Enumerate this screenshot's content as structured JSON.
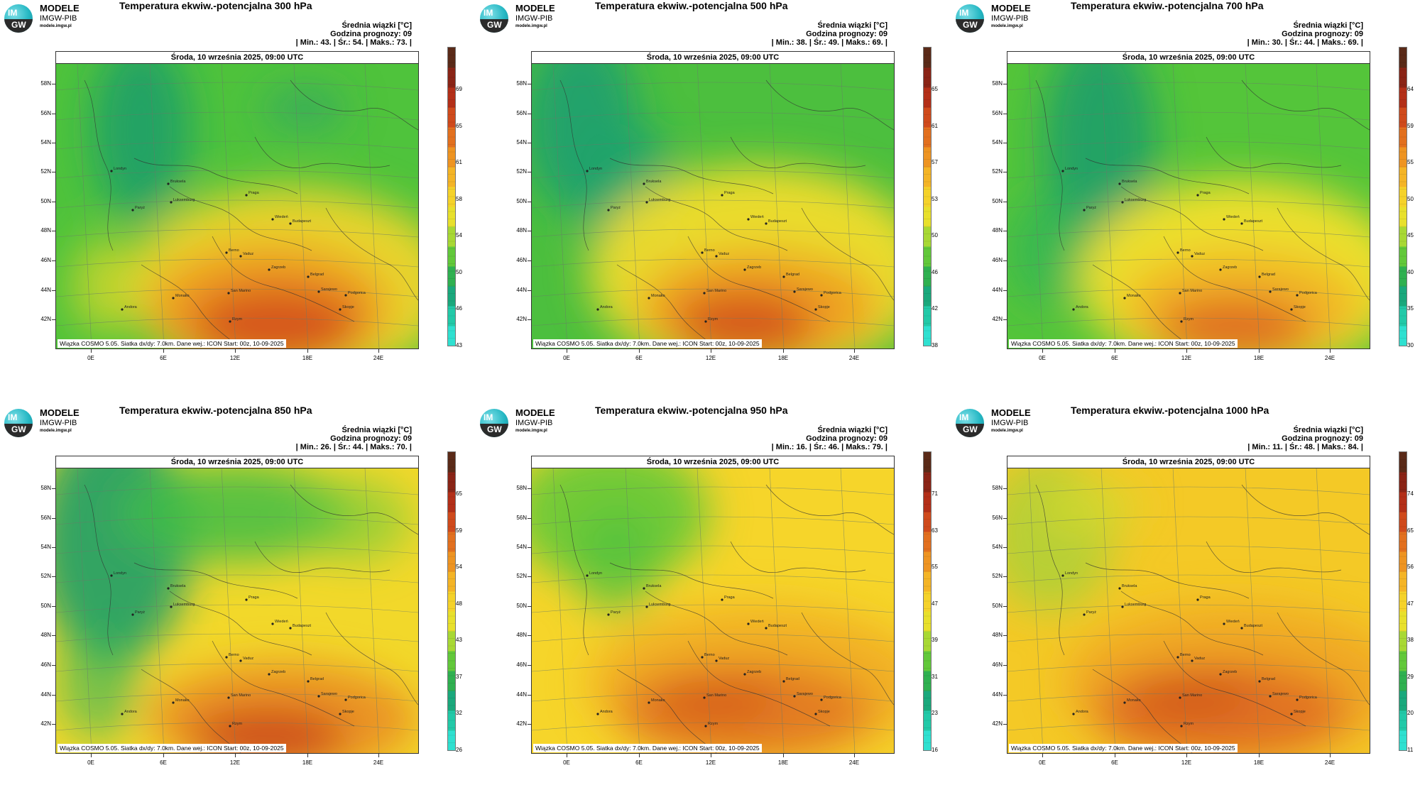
{
  "brand": {
    "line1": "MODELE",
    "line2": "IMGW-PIB",
    "url": "modele.imgw.pl",
    "logo_top": "IM",
    "logo_bottom": "GW"
  },
  "common": {
    "date": "Środa, 10 września 2025, 09:00 UTC",
    "mean_label": "Średnia wiązki [°C]",
    "forecast_label": "Godzina prognozy: 09",
    "footer": "Wiązka COSMO 5.05. Siatka dx/dy: 7.0km. Dane wej.: ICON Start: 00z, 10-09-2025",
    "lat_labels": [
      "58N",
      "56N",
      "54N",
      "52N",
      "50N",
      "48N",
      "46N",
      "44N",
      "42N"
    ],
    "lon_labels": [
      "0E",
      "6E",
      "12E",
      "18E",
      "24E"
    ],
    "cities": [
      "Londyn",
      "Bruksela",
      "Luksemburg",
      "Paryż",
      "Praga",
      "Wiedeń",
      "Budapeszt",
      "Berno",
      "Vaduz",
      "Zagrzeb",
      "Belgrad",
      "San Marino",
      "Sarajewo",
      "Monako",
      "Podgorica",
      "Skopje",
      "Rzym",
      "Andora"
    ],
    "colors": {
      "low": "#2fd6c4",
      "mid": "#f5e12a",
      "high": "#c8401c",
      "top": "#5a2a18"
    }
  },
  "panels": [
    {
      "title": "Temperatura ekwiw.-potencjalna 300 hPa",
      "stats": "| Min.:   43. | Śr.:   54. | Maks.:   73. |",
      "scale": [
        "69",
        "65",
        "61",
        "58",
        "54",
        "50",
        "46",
        "43"
      ]
    },
    {
      "title": "Temperatura ekwiw.-potencjalna 500 hPa",
      "stats": "| Min.:   38. | Śr.:   49. | Maks.:   69. |",
      "scale": [
        "65",
        "61",
        "57",
        "53",
        "50",
        "46",
        "42",
        "38"
      ]
    },
    {
      "title": "Temperatura ekwiw.-potencjalna 700 hPa",
      "stats": "| Min.:   30. | Śr.:   44. | Maks.:   69. |",
      "scale": [
        "64",
        "59",
        "55",
        "50",
        "45",
        "40",
        "35",
        "30"
      ]
    },
    {
      "title": "Temperatura ekwiw.-potencjalna 850 hPa",
      "stats": "| Min.:   26. | Śr.:   44. | Maks.:   70. |",
      "scale": [
        "65",
        "59",
        "54",
        "48",
        "43",
        "37",
        "32",
        "26"
      ]
    },
    {
      "title": "Temperatura ekwiw.-potencjalna 950 hPa",
      "stats": "| Min.:   16. | Śr.:   46. | Maks.:   79. |",
      "scale": [
        "71",
        "63",
        "55",
        "47",
        "39",
        "31",
        "23",
        "16"
      ]
    },
    {
      "title": "Temperatura ekwiw.-potencjalna 1000 hPa",
      "stats": "| Min.:   11. | Śr.:   48. | Maks.:   84. |",
      "scale": [
        "74",
        "65",
        "56",
        "47",
        "38",
        "29",
        "20",
        "11"
      ]
    }
  ]
}
